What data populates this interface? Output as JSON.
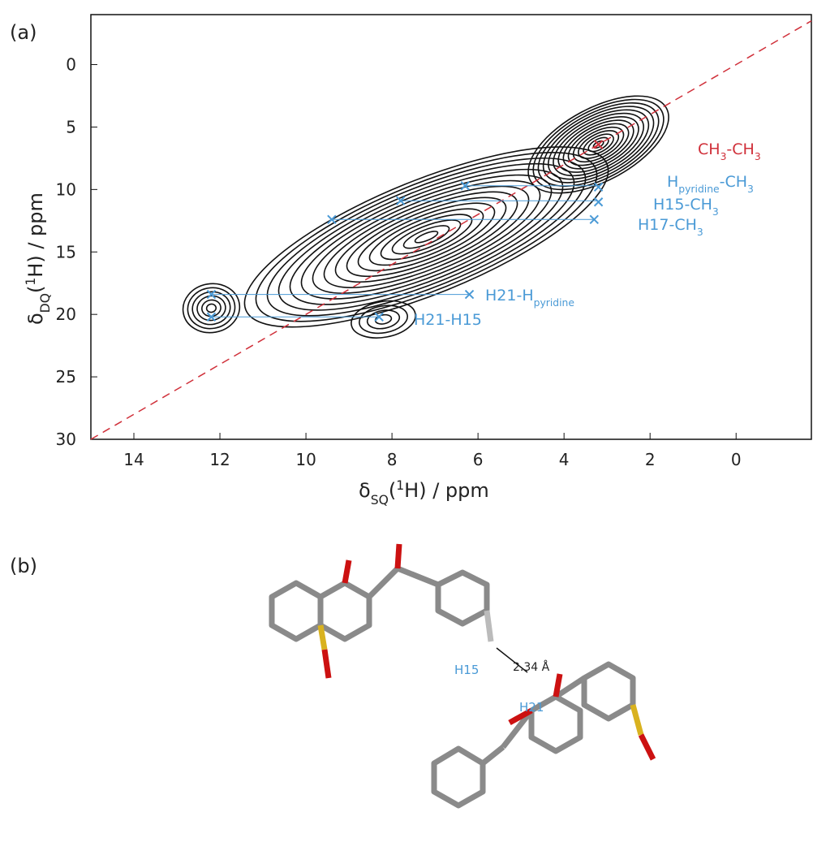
{
  "panel_labels": [
    "(a)",
    "(b)"
  ],
  "chart_data": {
    "type": "scatter",
    "x_label_parts": [
      "δ",
      "SQ",
      "(",
      "1",
      "H) / ppm"
    ],
    "y_label_parts": [
      "δ",
      "DQ",
      "(",
      "1",
      "H) / ppm"
    ],
    "xlim": [
      15,
      -1.75
    ],
    "ylim": [
      -4,
      30
    ],
    "xticks": [
      14,
      12,
      10,
      8,
      6,
      4,
      2,
      0
    ],
    "yticks": [
      0,
      5,
      10,
      15,
      20,
      25,
      30
    ],
    "x": [
      12.2,
      12.2,
      8.3,
      6.2,
      9.4,
      7.8,
      6.3,
      3.2,
      3.2,
      3.3
    ],
    "y": [
      18.4,
      20.2,
      20.2,
      18.4,
      12.4,
      10.9,
      9.7,
      9.8,
      11.0,
      12.4
    ],
    "color": "#4a9ad6",
    "diagonal_point": {
      "x": 3.2,
      "y": 6.4,
      "color": "#d0303a"
    },
    "annotations": [
      {
        "parts": [
          "CH",
          "3",
          "-CH",
          "3"
        ],
        "color": "#d0303a"
      },
      {
        "parts": [
          "H",
          "pyridine",
          "-CH",
          "3"
        ],
        "color": "#4a9ad6"
      },
      {
        "parts": [
          "H15-CH",
          "3"
        ],
        "color": "#4a9ad6"
      },
      {
        "parts": [
          "H17-CH",
          "3"
        ],
        "color": "#4a9ad6"
      },
      {
        "parts": [
          "H21-H",
          "pyridine"
        ],
        "color": "#4a9ad6"
      },
      {
        "parts": [
          "H21-H15"
        ],
        "color": "#4a9ad6"
      }
    ]
  },
  "molecule": {
    "labels": [
      "H15",
      "H21"
    ],
    "distance": "2.34 Å"
  }
}
